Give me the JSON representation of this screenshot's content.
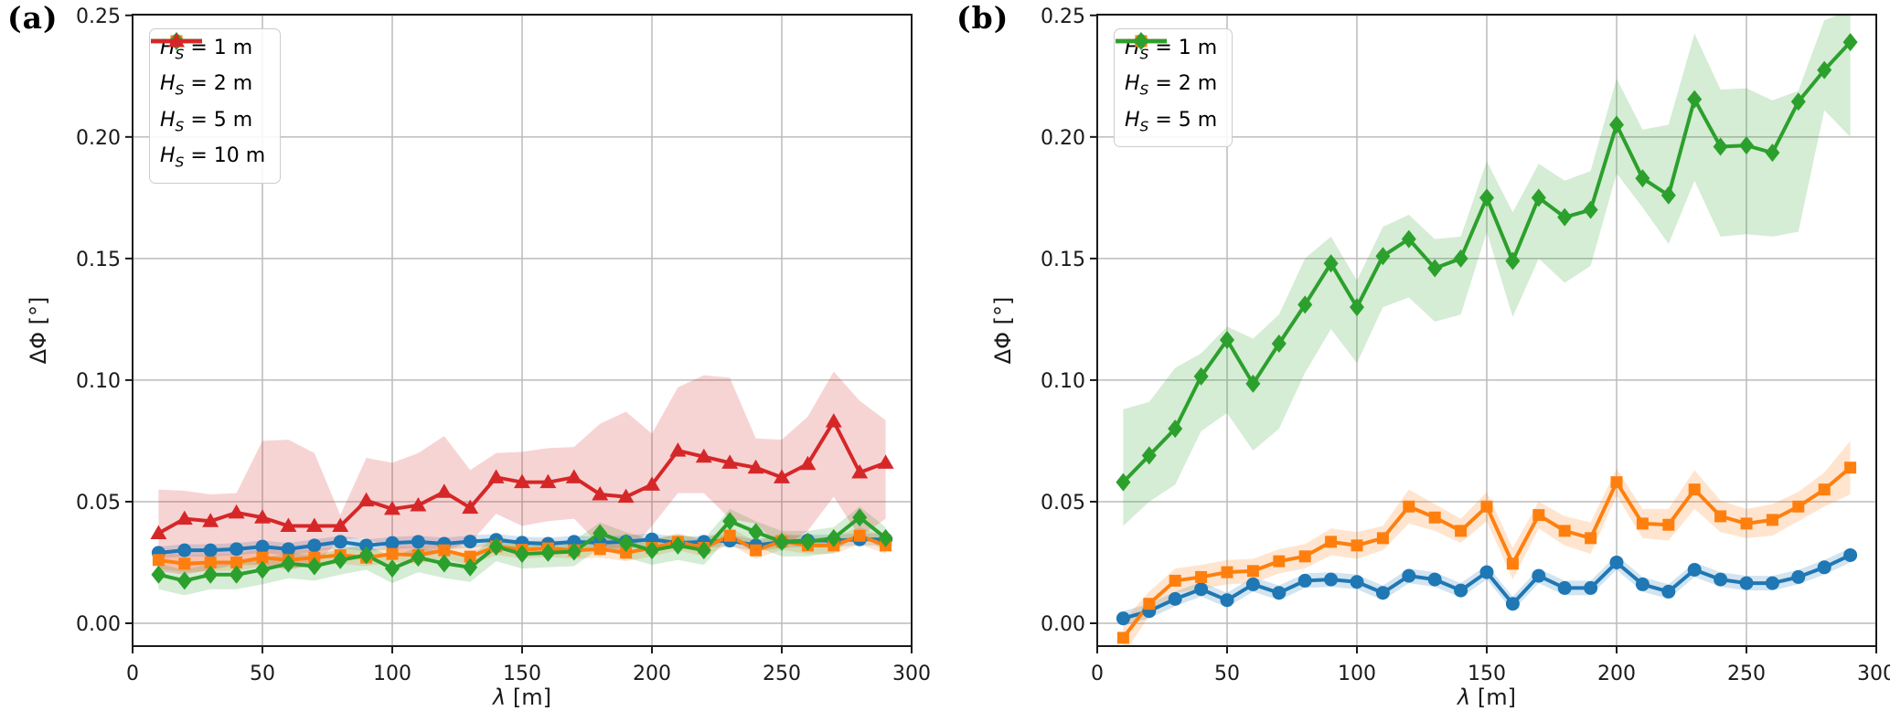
{
  "figure": {
    "background": "#ffffff"
  },
  "style": {
    "spine_color": "#1a1a1a",
    "grid_color": "#bcbcbc",
    "tick_label_color": "#1a1a1a",
    "band_alpha": 0.2,
    "accent_colors": {
      "hs1": "#1f77b4",
      "hs2": "#ff7f0e",
      "hs5": "#2ca02c",
      "hs10": "#d62728"
    }
  },
  "chart_data": [
    {
      "panel_label": "(a)",
      "type": "line",
      "title": "",
      "xlabel": "λ [m]",
      "xlabel_symbol": "λ",
      "xlabel_unit": "[m]",
      "ylabel": "ΔΦ [°]",
      "xlim": [
        0,
        300
      ],
      "ylim": [
        -0.0094,
        0.2503
      ],
      "xticks": [
        0,
        50,
        100,
        150,
        200,
        250,
        300
      ],
      "xtick_labels": [
        "0",
        "50",
        "100",
        "150",
        "200",
        "250",
        "300"
      ],
      "yticks": [
        0.0,
        0.05,
        0.1,
        0.15,
        0.2,
        0.25
      ],
      "ytick_labels": [
        "0.00",
        "0.05",
        "0.10",
        "0.15",
        "0.20",
        "0.25"
      ],
      "grid": true,
      "legend_position": "upper left",
      "x": [
        10,
        20,
        30,
        40,
        50,
        60,
        70,
        80,
        90,
        100,
        110,
        120,
        130,
        140,
        150,
        160,
        170,
        180,
        190,
        200,
        210,
        220,
        230,
        240,
        250,
        260,
        270,
        280,
        290
      ],
      "series": [
        {
          "name": "hs1",
          "label": "H_S = 1 m",
          "label_symbol": "H",
          "label_subscript": "S",
          "label_suffix": "= 1 m",
          "color": "#1f77b4",
          "marker": "circle",
          "values": [
            0.029,
            0.03,
            0.03,
            0.0305,
            0.0315,
            0.0305,
            0.032,
            0.0335,
            0.032,
            0.033,
            0.0335,
            0.0327,
            0.0336,
            0.0343,
            0.0331,
            0.0327,
            0.0335,
            0.0331,
            0.0336,
            0.0345,
            0.033,
            0.0335,
            0.034,
            0.032,
            0.0335,
            0.034,
            0.034,
            0.0345,
            0.0345
          ],
          "band_upper": [
            0.0315,
            0.0325,
            0.0325,
            0.033,
            0.034,
            0.033,
            0.0345,
            0.036,
            0.0345,
            0.0355,
            0.036,
            0.0352,
            0.0361,
            0.0368,
            0.0356,
            0.0352,
            0.036,
            0.0356,
            0.0361,
            0.037,
            0.0355,
            0.036,
            0.0365,
            0.0345,
            0.036,
            0.0365,
            0.0365,
            0.037,
            0.037
          ],
          "band_lower": [
            0.0265,
            0.0275,
            0.0275,
            0.028,
            0.029,
            0.028,
            0.0295,
            0.031,
            0.0295,
            0.0305,
            0.031,
            0.0302,
            0.0311,
            0.0318,
            0.0306,
            0.0302,
            0.031,
            0.0306,
            0.0311,
            0.032,
            0.0305,
            0.031,
            0.0315,
            0.0295,
            0.031,
            0.0315,
            0.0315,
            0.032,
            0.032
          ]
        },
        {
          "name": "hs2",
          "label": "H_S = 2 m",
          "label_symbol": "H",
          "label_subscript": "S",
          "label_suffix": "= 2 m",
          "color": "#ff7f0e",
          "marker": "square",
          "values": [
            0.026,
            0.0245,
            0.025,
            0.025,
            0.027,
            0.026,
            0.027,
            0.028,
            0.027,
            0.0285,
            0.028,
            0.03,
            0.0274,
            0.0316,
            0.0302,
            0.0308,
            0.03,
            0.0305,
            0.029,
            0.031,
            0.0335,
            0.031,
            0.036,
            0.03,
            0.0337,
            0.032,
            0.032,
            0.036,
            0.032
          ],
          "band_upper": [
            0.0295,
            0.028,
            0.0285,
            0.0285,
            0.0305,
            0.0295,
            0.0305,
            0.0315,
            0.0305,
            0.032,
            0.0315,
            0.0335,
            0.0309,
            0.0351,
            0.0337,
            0.0343,
            0.0335,
            0.034,
            0.0325,
            0.0345,
            0.037,
            0.0345,
            0.0395,
            0.0335,
            0.0372,
            0.0355,
            0.0355,
            0.0395,
            0.0355
          ],
          "band_lower": [
            0.0225,
            0.021,
            0.0215,
            0.0215,
            0.0235,
            0.0225,
            0.0235,
            0.0245,
            0.0235,
            0.025,
            0.0245,
            0.0265,
            0.0239,
            0.0281,
            0.0267,
            0.0273,
            0.0265,
            0.027,
            0.0255,
            0.0275,
            0.03,
            0.0275,
            0.0325,
            0.0265,
            0.0302,
            0.0285,
            0.0285,
            0.0325,
            0.0285
          ]
        },
        {
          "name": "hs5",
          "label": "H_S = 5 m",
          "label_symbol": "H",
          "label_subscript": "S",
          "label_suffix": "= 5 m",
          "color": "#2ca02c",
          "marker": "diamond",
          "values": [
            0.02,
            0.0175,
            0.02,
            0.02,
            0.022,
            0.0245,
            0.0235,
            0.026,
            0.028,
            0.0225,
            0.027,
            0.0246,
            0.023,
            0.0315,
            0.0285,
            0.029,
            0.0295,
            0.037,
            0.033,
            0.03,
            0.032,
            0.03,
            0.042,
            0.0375,
            0.0335,
            0.0335,
            0.035,
            0.0435,
            0.035
          ],
          "band_upper": [
            0.0245,
            0.022,
            0.0245,
            0.0245,
            0.0265,
            0.029,
            0.028,
            0.0305,
            0.0325,
            0.027,
            0.0315,
            0.0291,
            0.0275,
            0.036,
            0.033,
            0.0335,
            0.034,
            0.0415,
            0.0375,
            0.0345,
            0.0365,
            0.0345,
            0.047,
            0.042,
            0.038,
            0.038,
            0.0395,
            0.048,
            0.0395
          ],
          "band_lower": [
            0.014,
            0.0115,
            0.014,
            0.014,
            0.016,
            0.0185,
            0.0175,
            0.02,
            0.022,
            0.0165,
            0.021,
            0.0186,
            0.017,
            0.0255,
            0.0225,
            0.023,
            0.0235,
            0.031,
            0.027,
            0.024,
            0.026,
            0.024,
            0.036,
            0.0315,
            0.0275,
            0.0275,
            0.029,
            0.0375,
            0.029
          ]
        },
        {
          "name": "hs10",
          "label": "H_S = 10 m",
          "label_symbol": "H",
          "label_subscript": "S",
          "label_suffix": "= 10 m",
          "color": "#d62728",
          "marker": "triangle",
          "values": [
            0.037,
            0.043,
            0.042,
            0.0455,
            0.0435,
            0.04,
            0.04,
            0.04,
            0.0505,
            0.047,
            0.0485,
            0.054,
            0.0475,
            0.06,
            0.058,
            0.058,
            0.06,
            0.053,
            0.052,
            0.057,
            0.071,
            0.0685,
            0.066,
            0.064,
            0.06,
            0.0655,
            0.083,
            0.062,
            0.066
          ],
          "band_upper": [
            0.055,
            0.0545,
            0.053,
            0.0535,
            0.075,
            0.0755,
            0.07,
            0.0445,
            0.068,
            0.066,
            0.07,
            0.077,
            0.063,
            0.07,
            0.0705,
            0.072,
            0.0725,
            0.082,
            0.087,
            0.078,
            0.097,
            0.102,
            0.101,
            0.076,
            0.0755,
            0.085,
            0.1035,
            0.0915,
            0.0835
          ],
          "band_lower": [
            0.0215,
            0.02,
            0.022,
            0.024,
            0.024,
            0.022,
            0.024,
            0.0345,
            0.035,
            0.03,
            0.028,
            0.03,
            0.033,
            0.045,
            0.04,
            0.042,
            0.043,
            0.032,
            0.028,
            0.04,
            0.0535,
            0.0535,
            0.043,
            0.041,
            0.031,
            0.038,
            0.052,
            0.0355,
            0.043
          ]
        }
      ]
    },
    {
      "panel_label": "(b)",
      "type": "line",
      "title": "",
      "xlabel": "λ [m]",
      "xlabel_symbol": "λ",
      "xlabel_unit": "[m]",
      "ylabel": "ΔΦ [°]",
      "xlim": [
        0,
        300
      ],
      "ylim": [
        -0.0094,
        0.2503
      ],
      "xticks": [
        0,
        50,
        100,
        150,
        200,
        250,
        300
      ],
      "xtick_labels": [
        "0",
        "50",
        "100",
        "150",
        "200",
        "250",
        "300"
      ],
      "yticks": [
        0.0,
        0.05,
        0.1,
        0.15,
        0.2,
        0.25
      ],
      "ytick_labels": [
        "0.00",
        "0.05",
        "0.10",
        "0.15",
        "0.20",
        "0.25"
      ],
      "grid": true,
      "legend_position": "upper left",
      "x": [
        10,
        20,
        30,
        40,
        50,
        60,
        70,
        80,
        90,
        100,
        110,
        120,
        130,
        140,
        150,
        160,
        170,
        180,
        190,
        200,
        210,
        220,
        230,
        240,
        250,
        260,
        270,
        280,
        290
      ],
      "series": [
        {
          "name": "hs1",
          "label": "H_S = 1 m",
          "label_symbol": "H",
          "label_subscript": "S",
          "label_suffix": "= 1 m",
          "color": "#1f77b4",
          "marker": "circle",
          "values": [
            0.002,
            0.005,
            0.01,
            0.014,
            0.0095,
            0.016,
            0.0125,
            0.0175,
            0.018,
            0.017,
            0.0125,
            0.0195,
            0.018,
            0.0135,
            0.021,
            0.008,
            0.0195,
            0.0145,
            0.0145,
            0.025,
            0.016,
            0.013,
            0.022,
            0.018,
            0.0165,
            0.0165,
            0.019,
            0.023,
            0.028
          ],
          "band_upper": [
            0.005,
            0.008,
            0.013,
            0.017,
            0.0125,
            0.019,
            0.0155,
            0.0205,
            0.021,
            0.02,
            0.0155,
            0.0225,
            0.021,
            0.0165,
            0.024,
            0.011,
            0.0225,
            0.0175,
            0.0175,
            0.028,
            0.019,
            0.016,
            0.025,
            0.021,
            0.0195,
            0.0195,
            0.022,
            0.026,
            0.031
          ],
          "band_lower": [
            -0.001,
            0.002,
            0.007,
            0.011,
            0.0065,
            0.013,
            0.0095,
            0.0145,
            0.015,
            0.014,
            0.0095,
            0.0165,
            0.015,
            0.0105,
            0.018,
            0.005,
            0.0165,
            0.0115,
            0.0115,
            0.022,
            0.013,
            0.01,
            0.019,
            0.015,
            0.0135,
            0.0135,
            0.016,
            0.02,
            0.025
          ]
        },
        {
          "name": "hs2",
          "label": "H_S = 2 m",
          "label_symbol": "H",
          "label_subscript": "S",
          "label_suffix": "= 2 m",
          "color": "#ff7f0e",
          "marker": "square",
          "values": [
            -0.006,
            0.008,
            0.0175,
            0.019,
            0.021,
            0.0215,
            0.0255,
            0.0275,
            0.0335,
            0.032,
            0.035,
            0.048,
            0.0435,
            0.038,
            0.048,
            0.0245,
            0.0445,
            0.038,
            0.035,
            0.058,
            0.041,
            0.0405,
            0.055,
            0.044,
            0.041,
            0.0425,
            0.048,
            0.055,
            0.064
          ],
          "band_upper": [
            0.001,
            0.013,
            0.0225,
            0.024,
            0.026,
            0.0265,
            0.0305,
            0.0325,
            0.039,
            0.0375,
            0.04,
            0.055,
            0.049,
            0.043,
            0.054,
            0.031,
            0.05,
            0.044,
            0.0415,
            0.0635,
            0.047,
            0.047,
            0.063,
            0.0505,
            0.047,
            0.049,
            0.054,
            0.062,
            0.075
          ],
          "band_lower": [
            -0.013,
            0.003,
            0.0125,
            0.014,
            0.016,
            0.0165,
            0.0205,
            0.0225,
            0.028,
            0.0265,
            0.03,
            0.041,
            0.038,
            0.033,
            0.042,
            0.018,
            0.039,
            0.032,
            0.0285,
            0.0525,
            0.035,
            0.034,
            0.047,
            0.0375,
            0.035,
            0.036,
            0.042,
            0.048,
            0.053
          ]
        },
        {
          "name": "hs5",
          "label": "H_S = 5 m",
          "label_symbol": "H",
          "label_subscript": "S",
          "label_suffix": "= 5 m",
          "color": "#2ca02c",
          "marker": "diamond",
          "values": [
            0.058,
            0.069,
            0.08,
            0.1015,
            0.1165,
            0.0985,
            0.115,
            0.131,
            0.148,
            0.13,
            0.151,
            0.158,
            0.146,
            0.15,
            0.175,
            0.149,
            0.175,
            0.167,
            0.17,
            0.205,
            0.183,
            0.176,
            0.2155,
            0.196,
            0.1965,
            0.1935,
            0.2145,
            0.2275,
            0.239
          ],
          "band_upper": [
            0.088,
            0.091,
            0.105,
            0.111,
            0.122,
            0.117,
            0.127,
            0.15,
            0.159,
            0.141,
            0.163,
            0.168,
            0.158,
            0.159,
            0.19,
            0.169,
            0.189,
            0.182,
            0.186,
            0.224,
            0.203,
            0.205,
            0.2425,
            0.2195,
            0.22,
            0.215,
            0.219,
            0.248,
            0.252
          ],
          "band_lower": [
            0.04,
            0.05,
            0.057,
            0.079,
            0.0865,
            0.071,
            0.08,
            0.103,
            0.121,
            0.107,
            0.13,
            0.134,
            0.124,
            0.127,
            0.161,
            0.126,
            0.15,
            0.14,
            0.147,
            0.185,
            0.171,
            0.156,
            0.182,
            0.159,
            0.16,
            0.159,
            0.161,
            0.211,
            0.2
          ]
        }
      ]
    }
  ]
}
